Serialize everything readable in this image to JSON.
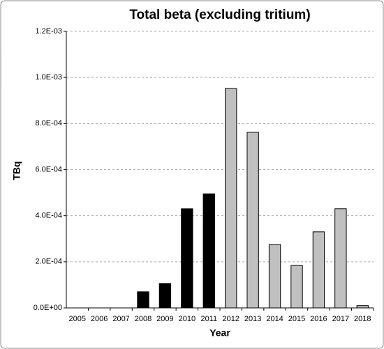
{
  "chart_data": {
    "type": "bar",
    "title": "Total beta (excluding tritium)",
    "x_label": "Year",
    "y_label": "TBq",
    "categories": [
      "2005",
      "2006",
      "2007",
      "2008",
      "2009",
      "2010",
      "2011",
      "2012",
      "2013",
      "2014",
      "2015",
      "2016",
      "2017",
      "2018"
    ],
    "values": [
      0,
      0,
      0,
      7e-05,
      0.000106,
      0.00043,
      0.000495,
      0.000952,
      0.000762,
      0.000275,
      0.000184,
      0.00033,
      0.00043,
      1e-05
    ],
    "colors": [
      "#000000",
      "#000000",
      "#000000",
      "#000000",
      "#000000",
      "#000000",
      "#000000",
      "#c0c0c0",
      "#c0c0c0",
      "#c0c0c0",
      "#c0c0c0",
      "#c0c0c0",
      "#c0c0c0",
      "#c0c0c0"
    ],
    "ylim": [
      0,
      0.0012
    ],
    "yticks": [
      {
        "value": 0,
        "label": "0.0E+00"
      },
      {
        "value": 0.0002,
        "label": "2.0E-04"
      },
      {
        "value": 0.0004,
        "label": "4.0E-04"
      },
      {
        "value": 0.0006,
        "label": "6.0E-04"
      },
      {
        "value": 0.0008,
        "label": "8.0E-04"
      },
      {
        "value": 0.001,
        "label": "1.0E-03"
      },
      {
        "value": 0.0012,
        "label": "1.2E-03"
      }
    ],
    "grid": true
  }
}
